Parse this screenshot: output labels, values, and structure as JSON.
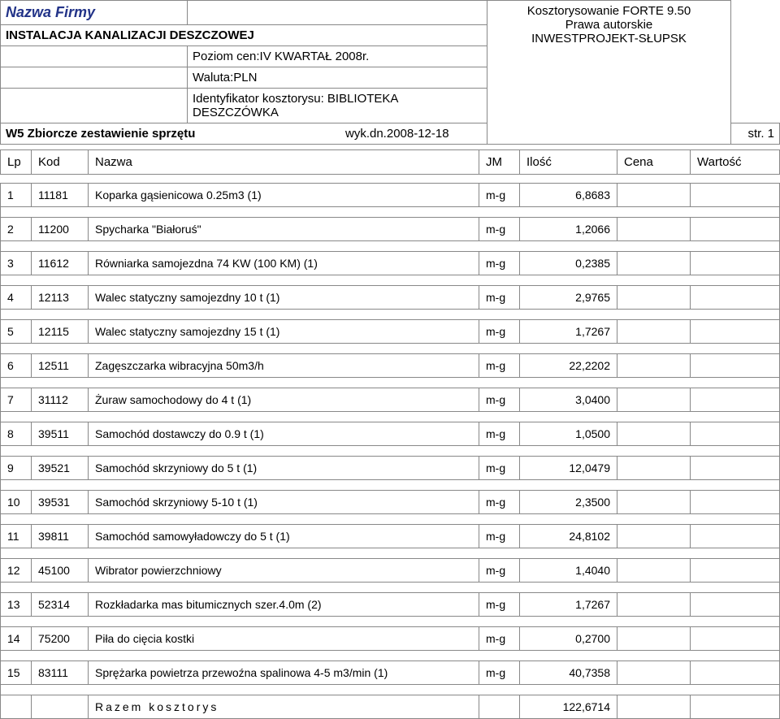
{
  "header": {
    "company_label": "Nazwa Firmy",
    "right1": "Kosztorysowanie FORTE 9.50",
    "right2": "Prawa autorskie",
    "right3": "INWESTPROJEKT-SŁUPSK",
    "install": "INSTALACJA KANALIZACJI DESZCZOWEJ",
    "poziom": "Poziom cen:IV KWARTAŁ 2008r.",
    "waluta": "Waluta:PLN",
    "identyf": "Identyfikator kosztorysu: BIBLIOTEKA DESZCZÓWKA",
    "w5": "W5 Zbiorcze zestawienie sprzętu",
    "wykdn": "wyk.dn.2008-12-18",
    "str": "str. 1"
  },
  "columns": {
    "lp": "Lp",
    "kod": "Kod",
    "nazwa": "Nazwa",
    "jm": "JM",
    "ilosc": "Ilość",
    "cena": "Cena",
    "wartosc": "Wartość"
  },
  "rows": [
    {
      "lp": "1",
      "kod": "11181",
      "nazwa": "Koparka gąsienicowa 0.25m3 (1)",
      "jm": "m-g",
      "ilosc": "6,8683"
    },
    {
      "lp": "2",
      "kod": "11200",
      "nazwa": "Spycharka \"Białoruś\"",
      "jm": "m-g",
      "ilosc": "1,2066"
    },
    {
      "lp": "3",
      "kod": "11612",
      "nazwa": "Równiarka samojezdna 74 KW (100 KM) (1)",
      "jm": "m-g",
      "ilosc": "0,2385"
    },
    {
      "lp": "4",
      "kod": "12113",
      "nazwa": "Walec statyczny samojezdny 10 t (1)",
      "jm": "m-g",
      "ilosc": "2,9765"
    },
    {
      "lp": "5",
      "kod": "12115",
      "nazwa": "Walec statyczny samojezdny 15 t (1)",
      "jm": "m-g",
      "ilosc": "1,7267"
    },
    {
      "lp": "6",
      "kod": "12511",
      "nazwa": "Zagęszczarka wibracyjna 50m3/h",
      "jm": "m-g",
      "ilosc": "22,2202"
    },
    {
      "lp": "7",
      "kod": "31112",
      "nazwa": "Żuraw samochodowy do 4 t (1)",
      "jm": "m-g",
      "ilosc": "3,0400"
    },
    {
      "lp": "8",
      "kod": "39511",
      "nazwa": "Samochód dostawczy do 0.9 t (1)",
      "jm": "m-g",
      "ilosc": "1,0500"
    },
    {
      "lp": "9",
      "kod": "39521",
      "nazwa": "Samochód skrzyniowy do 5 t (1)",
      "jm": "m-g",
      "ilosc": "12,0479"
    },
    {
      "lp": "10",
      "kod": "39531",
      "nazwa": "Samochód skrzyniowy 5-10 t (1)",
      "jm": "m-g",
      "ilosc": "2,3500"
    },
    {
      "lp": "11",
      "kod": "39811",
      "nazwa": "Samochód samowyładowczy do 5 t (1)",
      "jm": "m-g",
      "ilosc": "24,8102"
    },
    {
      "lp": "12",
      "kod": "45100",
      "nazwa": "Wibrator powierzchniowy",
      "jm": "m-g",
      "ilosc": "1,4040"
    },
    {
      "lp": "13",
      "kod": "52314",
      "nazwa": "Rozkładarka mas bitumicznych szer.4.0m (2)",
      "jm": "m-g",
      "ilosc": "1,7267"
    },
    {
      "lp": "14",
      "kod": "75200",
      "nazwa": "Piła do cięcia kostki",
      "jm": "m-g",
      "ilosc": "0,2700"
    },
    {
      "lp": "15",
      "kod": "83111",
      "nazwa": "Sprężarka powietrza przewoźna spalinowa 4-5 m3/min (1)",
      "jm": "m-g",
      "ilosc": "40,7358"
    }
  ],
  "total": {
    "label": "Razem kosztorys",
    "value": "122,6714"
  }
}
